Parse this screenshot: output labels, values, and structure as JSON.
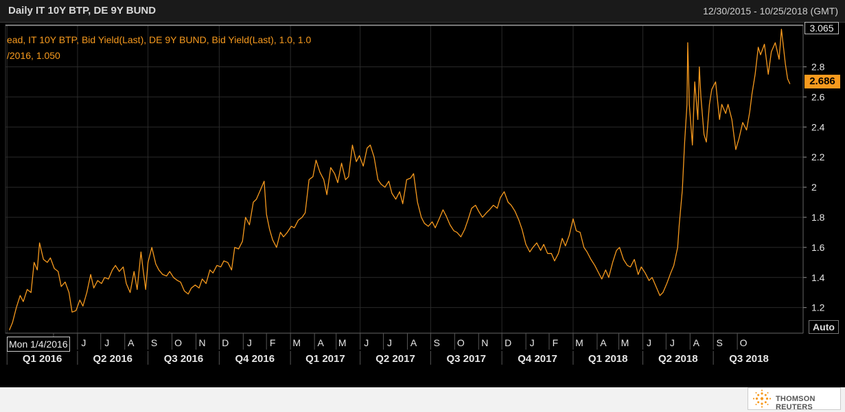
{
  "header": {
    "title": "Daily IT 10Y BTP, DE 9Y BUND",
    "date_range": "12/30/2015 - 10/25/2018 (GMT)"
  },
  "legend": {
    "line1": "ead, IT 10Y BTP, Bid Yield(Last), DE 9Y BUND, Bid Yield(Last),  1.0, 1.0",
    "line2": "/2016, 1.050"
  },
  "controls": {
    "auto_label": "Auto",
    "start_date_label": "Mon 1/4/2016"
  },
  "markers": {
    "max_value": "3.065",
    "last_value": "2.686"
  },
  "colors": {
    "series": "#f79a1e",
    "background": "#000000",
    "grid": "#2a2a2a",
    "axis_text": "#e6e6e6"
  },
  "logo": {
    "text": "THOMSON REUTERS"
  },
  "chart_data": {
    "type": "line",
    "title": "Daily IT 10Y BTP, DE 9Y BUND",
    "y_ticks": [
      "1.2",
      "1.4",
      "1.6",
      "1.8",
      "2",
      "2.2",
      "2.4",
      "2.6",
      "2.8"
    ],
    "ylim": [
      1.03,
      3.08
    ],
    "xlim": [
      "2015-12-30",
      "2018-10-25"
    ],
    "grid": true,
    "month_ticks": [
      {
        "label": "M",
        "date": "2016-03-01"
      },
      {
        "label": "J",
        "date": "2016-04-01"
      },
      {
        "label": "J",
        "date": "2016-05-01"
      },
      {
        "label": "A",
        "date": "2016-06-01"
      },
      {
        "label": "S",
        "date": "2016-07-01"
      },
      {
        "label": "O",
        "date": "2016-08-01"
      },
      {
        "label": "N",
        "date": "2016-09-01"
      },
      {
        "label": "D",
        "date": "2016-10-01"
      },
      {
        "label": "J",
        "date": "2016-11-01"
      },
      {
        "label": "F",
        "date": "2016-12-01"
      },
      {
        "label": "M",
        "date": "2017-01-01"
      },
      {
        "label": "A",
        "date": "2017-02-01"
      },
      {
        "label": "M",
        "date": "2017-03-01"
      },
      {
        "label": "J",
        "date": "2017-04-01"
      },
      {
        "label": "J",
        "date": "2017-05-01"
      },
      {
        "label": "A",
        "date": "2017-06-01"
      },
      {
        "label": "S",
        "date": "2017-07-01"
      },
      {
        "label": "O",
        "date": "2017-08-01"
      },
      {
        "label": "N",
        "date": "2017-09-01"
      },
      {
        "label": "D",
        "date": "2017-10-01"
      },
      {
        "label": "J",
        "date": "2017-11-01"
      },
      {
        "label": "F",
        "date": "2017-12-01"
      },
      {
        "label": "M",
        "date": "2018-01-01"
      },
      {
        "label": "A",
        "date": "2018-02-01"
      },
      {
        "label": "M",
        "date": "2018-03-01"
      },
      {
        "label": "J",
        "date": "2018-04-01"
      },
      {
        "label": "J",
        "date": "2018-05-01"
      },
      {
        "label": "A",
        "date": "2018-06-01"
      },
      {
        "label": "S",
        "date": "2018-07-01"
      },
      {
        "label": "O",
        "date": "2018-08-01"
      }
    ],
    "quarter_ticks": [
      {
        "label": "Q1 2016",
        "start": "2016-01-01",
        "end": "2016-04-01"
      },
      {
        "label": "Q2 2016",
        "start": "2016-04-01",
        "end": "2016-07-01"
      },
      {
        "label": "Q3 2016",
        "start": "2016-07-01",
        "end": "2016-10-01"
      },
      {
        "label": "Q4 2016",
        "start": "2016-10-01",
        "end": "2017-01-01"
      },
      {
        "label": "Q1 2017",
        "start": "2017-01-01",
        "end": "2017-04-01"
      },
      {
        "label": "Q2 2017",
        "start": "2017-04-01",
        "end": "2017-07-01"
      },
      {
        "label": "Q3 2017",
        "start": "2017-07-01",
        "end": "2017-10-01"
      },
      {
        "label": "Q4 2017",
        "start": "2017-10-01",
        "end": "2018-01-01"
      },
      {
        "label": "Q1 2018",
        "start": "2018-01-01",
        "end": "2018-04-01"
      },
      {
        "label": "Q2 2018",
        "start": "2018-04-01",
        "end": "2018-07-01"
      },
      {
        "label": "Q3 2018",
        "start": "2018-07-01",
        "end": "2018-10-01"
      }
    ],
    "series": [
      {
        "color": "#f79a1e",
        "points": [
          [
            "2016-01-04",
            1.05
          ],
          [
            "2016-01-08",
            1.1
          ],
          [
            "2016-01-13",
            1.2
          ],
          [
            "2016-01-18",
            1.28
          ],
          [
            "2016-01-22",
            1.24
          ],
          [
            "2016-01-27",
            1.32
          ],
          [
            "2016-02-01",
            1.3
          ],
          [
            "2016-02-05",
            1.5
          ],
          [
            "2016-02-09",
            1.45
          ],
          [
            "2016-02-12",
            1.63
          ],
          [
            "2016-02-17",
            1.52
          ],
          [
            "2016-02-22",
            1.5
          ],
          [
            "2016-02-26",
            1.53
          ],
          [
            "2016-03-02",
            1.46
          ],
          [
            "2016-03-07",
            1.44
          ],
          [
            "2016-03-11",
            1.34
          ],
          [
            "2016-03-16",
            1.37
          ],
          [
            "2016-03-21",
            1.3
          ],
          [
            "2016-03-25",
            1.17
          ],
          [
            "2016-03-30",
            1.18
          ],
          [
            "2016-04-04",
            1.25
          ],
          [
            "2016-04-08",
            1.21
          ],
          [
            "2016-04-13",
            1.3
          ],
          [
            "2016-04-18",
            1.42
          ],
          [
            "2016-04-22",
            1.33
          ],
          [
            "2016-04-27",
            1.38
          ],
          [
            "2016-05-02",
            1.36
          ],
          [
            "2016-05-06",
            1.4
          ],
          [
            "2016-05-11",
            1.39
          ],
          [
            "2016-05-16",
            1.45
          ],
          [
            "2016-05-20",
            1.48
          ],
          [
            "2016-05-25",
            1.44
          ],
          [
            "2016-05-30",
            1.47
          ],
          [
            "2016-06-03",
            1.36
          ],
          [
            "2016-06-08",
            1.3
          ],
          [
            "2016-06-13",
            1.44
          ],
          [
            "2016-06-17",
            1.32
          ],
          [
            "2016-06-22",
            1.57
          ],
          [
            "2016-06-24",
            1.48
          ],
          [
            "2016-06-28",
            1.32
          ],
          [
            "2016-07-01",
            1.5
          ],
          [
            "2016-07-06",
            1.6
          ],
          [
            "2016-07-11",
            1.49
          ],
          [
            "2016-07-15",
            1.45
          ],
          [
            "2016-07-20",
            1.42
          ],
          [
            "2016-07-25",
            1.41
          ],
          [
            "2016-07-29",
            1.44
          ],
          [
            "2016-08-03",
            1.4
          ],
          [
            "2016-08-08",
            1.38
          ],
          [
            "2016-08-12",
            1.37
          ],
          [
            "2016-08-17",
            1.31
          ],
          [
            "2016-08-22",
            1.29
          ],
          [
            "2016-08-26",
            1.33
          ],
          [
            "2016-08-31",
            1.35
          ],
          [
            "2016-09-05",
            1.33
          ],
          [
            "2016-09-09",
            1.39
          ],
          [
            "2016-09-14",
            1.36
          ],
          [
            "2016-09-19",
            1.45
          ],
          [
            "2016-09-23",
            1.43
          ],
          [
            "2016-09-28",
            1.48
          ],
          [
            "2016-10-03",
            1.47
          ],
          [
            "2016-10-07",
            1.51
          ],
          [
            "2016-10-12",
            1.5
          ],
          [
            "2016-10-17",
            1.45
          ],
          [
            "2016-10-21",
            1.6
          ],
          [
            "2016-10-26",
            1.59
          ],
          [
            "2016-10-31",
            1.64
          ],
          [
            "2016-11-04",
            1.8
          ],
          [
            "2016-11-09",
            1.75
          ],
          [
            "2016-11-14",
            1.9
          ],
          [
            "2016-11-18",
            1.92
          ],
          [
            "2016-11-23",
            1.98
          ],
          [
            "2016-11-28",
            2.04
          ],
          [
            "2016-12-01",
            1.82
          ],
          [
            "2016-12-05",
            1.72
          ],
          [
            "2016-12-09",
            1.65
          ],
          [
            "2016-12-14",
            1.6
          ],
          [
            "2016-12-19",
            1.7
          ],
          [
            "2016-12-23",
            1.67
          ],
          [
            "2016-12-28",
            1.7
          ],
          [
            "2017-01-02",
            1.74
          ],
          [
            "2017-01-06",
            1.73
          ],
          [
            "2017-01-11",
            1.78
          ],
          [
            "2017-01-16",
            1.8
          ],
          [
            "2017-01-20",
            1.83
          ],
          [
            "2017-01-25",
            2.05
          ],
          [
            "2017-01-30",
            2.07
          ],
          [
            "2017-02-03",
            2.18
          ],
          [
            "2017-02-08",
            2.1
          ],
          [
            "2017-02-13",
            2.05
          ],
          [
            "2017-02-17",
            1.95
          ],
          [
            "2017-02-22",
            2.13
          ],
          [
            "2017-02-27",
            2.09
          ],
          [
            "2017-03-03",
            2.03
          ],
          [
            "2017-03-08",
            2.16
          ],
          [
            "2017-03-13",
            2.05
          ],
          [
            "2017-03-17",
            2.07
          ],
          [
            "2017-03-22",
            2.28
          ],
          [
            "2017-03-27",
            2.17
          ],
          [
            "2017-03-31",
            2.21
          ],
          [
            "2017-04-05",
            2.14
          ],
          [
            "2017-04-10",
            2.26
          ],
          [
            "2017-04-14",
            2.28
          ],
          [
            "2017-04-19",
            2.2
          ],
          [
            "2017-04-24",
            2.05
          ],
          [
            "2017-04-28",
            2.02
          ],
          [
            "2017-05-03",
            2.0
          ],
          [
            "2017-05-08",
            2.04
          ],
          [
            "2017-05-12",
            1.96
          ],
          [
            "2017-05-17",
            1.92
          ],
          [
            "2017-05-22",
            1.97
          ],
          [
            "2017-05-26",
            1.89
          ],
          [
            "2017-05-31",
            2.05
          ],
          [
            "2017-06-05",
            2.06
          ],
          [
            "2017-06-09",
            2.09
          ],
          [
            "2017-06-14",
            1.9
          ],
          [
            "2017-06-19",
            1.8
          ],
          [
            "2017-06-23",
            1.76
          ],
          [
            "2017-06-28",
            1.74
          ],
          [
            "2017-07-03",
            1.77
          ],
          [
            "2017-07-07",
            1.73
          ],
          [
            "2017-07-12",
            1.79
          ],
          [
            "2017-07-17",
            1.85
          ],
          [
            "2017-07-21",
            1.81
          ],
          [
            "2017-07-26",
            1.75
          ],
          [
            "2017-07-31",
            1.71
          ],
          [
            "2017-08-04",
            1.7
          ],
          [
            "2017-08-09",
            1.67
          ],
          [
            "2017-08-14",
            1.72
          ],
          [
            "2017-08-18",
            1.78
          ],
          [
            "2017-08-23",
            1.86
          ],
          [
            "2017-08-28",
            1.88
          ],
          [
            "2017-09-01",
            1.84
          ],
          [
            "2017-09-06",
            1.8
          ],
          [
            "2017-09-11",
            1.83
          ],
          [
            "2017-09-15",
            1.85
          ],
          [
            "2017-09-20",
            1.88
          ],
          [
            "2017-09-25",
            1.86
          ],
          [
            "2017-09-29",
            1.93
          ],
          [
            "2017-10-04",
            1.97
          ],
          [
            "2017-10-09",
            1.9
          ],
          [
            "2017-10-13",
            1.88
          ],
          [
            "2017-10-18",
            1.84
          ],
          [
            "2017-10-23",
            1.78
          ],
          [
            "2017-10-27",
            1.72
          ],
          [
            "2017-11-01",
            1.62
          ],
          [
            "2017-11-06",
            1.57
          ],
          [
            "2017-11-10",
            1.6
          ],
          [
            "2017-11-15",
            1.63
          ],
          [
            "2017-11-20",
            1.58
          ],
          [
            "2017-11-24",
            1.62
          ],
          [
            "2017-11-29",
            1.56
          ],
          [
            "2017-12-04",
            1.56
          ],
          [
            "2017-12-08",
            1.51
          ],
          [
            "2017-12-13",
            1.56
          ],
          [
            "2017-12-18",
            1.66
          ],
          [
            "2017-12-22",
            1.61
          ],
          [
            "2017-12-27",
            1.68
          ],
          [
            "2018-01-01",
            1.79
          ],
          [
            "2018-01-05",
            1.71
          ],
          [
            "2018-01-10",
            1.7
          ],
          [
            "2018-01-15",
            1.6
          ],
          [
            "2018-01-19",
            1.57
          ],
          [
            "2018-01-24",
            1.52
          ],
          [
            "2018-01-29",
            1.48
          ],
          [
            "2018-02-02",
            1.44
          ],
          [
            "2018-02-07",
            1.39
          ],
          [
            "2018-02-12",
            1.45
          ],
          [
            "2018-02-16",
            1.4
          ],
          [
            "2018-02-21",
            1.5
          ],
          [
            "2018-02-26",
            1.58
          ],
          [
            "2018-03-02",
            1.6
          ],
          [
            "2018-03-07",
            1.52
          ],
          [
            "2018-03-12",
            1.48
          ],
          [
            "2018-03-16",
            1.47
          ],
          [
            "2018-03-21",
            1.52
          ],
          [
            "2018-03-26",
            1.42
          ],
          [
            "2018-03-30",
            1.47
          ],
          [
            "2018-04-04",
            1.43
          ],
          [
            "2018-04-09",
            1.38
          ],
          [
            "2018-04-13",
            1.4
          ],
          [
            "2018-04-18",
            1.34
          ],
          [
            "2018-04-23",
            1.28
          ],
          [
            "2018-04-27",
            1.3
          ],
          [
            "2018-05-02",
            1.36
          ],
          [
            "2018-05-07",
            1.43
          ],
          [
            "2018-05-11",
            1.48
          ],
          [
            "2018-05-16",
            1.6
          ],
          [
            "2018-05-18",
            1.75
          ],
          [
            "2018-05-22",
            1.98
          ],
          [
            "2018-05-25",
            2.3
          ],
          [
            "2018-05-28",
            2.55
          ],
          [
            "2018-05-29",
            2.96
          ],
          [
            "2018-05-31",
            2.55
          ],
          [
            "2018-06-04",
            2.28
          ],
          [
            "2018-06-07",
            2.7
          ],
          [
            "2018-06-11",
            2.45
          ],
          [
            "2018-06-13",
            2.8
          ],
          [
            "2018-06-15",
            2.6
          ],
          [
            "2018-06-19",
            2.35
          ],
          [
            "2018-06-22",
            2.3
          ],
          [
            "2018-06-26",
            2.55
          ],
          [
            "2018-06-29",
            2.65
          ],
          [
            "2018-07-04",
            2.7
          ],
          [
            "2018-07-09",
            2.45
          ],
          [
            "2018-07-12",
            2.55
          ],
          [
            "2018-07-17",
            2.49
          ],
          [
            "2018-07-20",
            2.55
          ],
          [
            "2018-07-25",
            2.45
          ],
          [
            "2018-07-30",
            2.25
          ],
          [
            "2018-08-03",
            2.32
          ],
          [
            "2018-08-08",
            2.43
          ],
          [
            "2018-08-13",
            2.38
          ],
          [
            "2018-08-17",
            2.5
          ],
          [
            "2018-08-20",
            2.62
          ],
          [
            "2018-08-24",
            2.75
          ],
          [
            "2018-08-28",
            2.93
          ],
          [
            "2018-08-31",
            2.88
          ],
          [
            "2018-09-05",
            2.95
          ],
          [
            "2018-09-10",
            2.75
          ],
          [
            "2018-09-14",
            2.9
          ],
          [
            "2018-09-19",
            2.96
          ],
          [
            "2018-09-24",
            2.85
          ],
          [
            "2018-09-27",
            3.05
          ],
          [
            "2018-10-02",
            2.82
          ],
          [
            "2018-10-05",
            2.72
          ],
          [
            "2018-10-08",
            2.686
          ]
        ]
      }
    ]
  }
}
